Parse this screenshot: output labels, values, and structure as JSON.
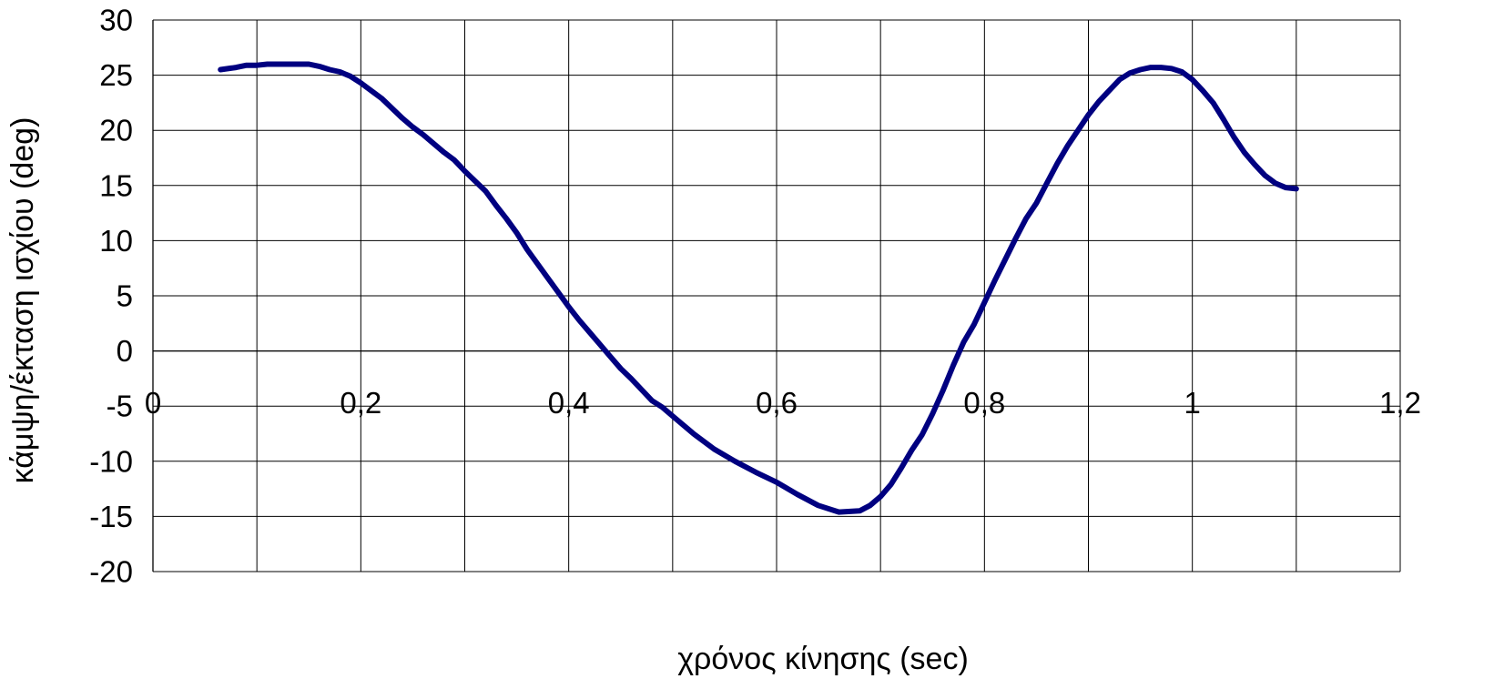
{
  "chart_data": {
    "type": "line",
    "title": "",
    "xlabel": "χρόνος κίνησης (sec)",
    "ylabel": "κάμψη/έκταση ισχίου (deg)",
    "xlim": [
      0,
      1.2
    ],
    "ylim": [
      -20,
      30
    ],
    "x_ticks": [
      0,
      0.2,
      0.4,
      0.6,
      0.8,
      1,
      1.2
    ],
    "x_tick_labels": [
      "0",
      "0,2",
      "0,4",
      "0,6",
      "0,8",
      "1",
      "1,2"
    ],
    "x_grid_step": 0.1,
    "y_ticks": [
      -20,
      -15,
      -10,
      -5,
      0,
      5,
      10,
      15,
      20,
      25,
      30
    ],
    "y_tick_labels": [
      "-20",
      "-15",
      "-10",
      "-5",
      "0",
      "5",
      "10",
      "15",
      "20",
      "25",
      "30"
    ],
    "grid": true,
    "legend": "none",
    "colors": {
      "series": "#000080",
      "grid": "#000000",
      "text": "#000000"
    },
    "series": [
      {
        "points": [
          [
            0.065,
            25.5
          ],
          [
            0.08,
            25.7
          ],
          [
            0.09,
            25.9
          ],
          [
            0.1,
            25.9
          ],
          [
            0.11,
            26.0
          ],
          [
            0.13,
            26.0
          ],
          [
            0.15,
            26.0
          ],
          [
            0.16,
            25.8
          ],
          [
            0.17,
            25.5
          ],
          [
            0.18,
            25.3
          ],
          [
            0.19,
            24.9
          ],
          [
            0.2,
            24.3
          ],
          [
            0.22,
            22.9
          ],
          [
            0.24,
            21.1
          ],
          [
            0.25,
            20.3
          ],
          [
            0.26,
            19.6
          ],
          [
            0.28,
            18.0
          ],
          [
            0.29,
            17.3
          ],
          [
            0.3,
            16.3
          ],
          [
            0.31,
            15.4
          ],
          [
            0.32,
            14.5
          ],
          [
            0.33,
            13.2
          ],
          [
            0.34,
            12.0
          ],
          [
            0.35,
            10.7
          ],
          [
            0.36,
            9.2
          ],
          [
            0.37,
            7.9
          ],
          [
            0.38,
            6.6
          ],
          [
            0.39,
            5.3
          ],
          [
            0.4,
            4.0
          ],
          [
            0.41,
            2.8
          ],
          [
            0.42,
            1.7
          ],
          [
            0.43,
            0.6
          ],
          [
            0.44,
            -0.5
          ],
          [
            0.45,
            -1.6
          ],
          [
            0.46,
            -2.5
          ],
          [
            0.47,
            -3.5
          ],
          [
            0.48,
            -4.5
          ],
          [
            0.49,
            -5.1
          ],
          [
            0.5,
            -5.9
          ],
          [
            0.52,
            -7.5
          ],
          [
            0.54,
            -8.9
          ],
          [
            0.56,
            -10.0
          ],
          [
            0.58,
            -11.0
          ],
          [
            0.6,
            -11.9
          ],
          [
            0.62,
            -13.0
          ],
          [
            0.64,
            -14.0
          ],
          [
            0.66,
            -14.6
          ],
          [
            0.68,
            -14.5
          ],
          [
            0.69,
            -14.0
          ],
          [
            0.7,
            -13.2
          ],
          [
            0.71,
            -12.1
          ],
          [
            0.72,
            -10.6
          ],
          [
            0.73,
            -9.0
          ],
          [
            0.74,
            -7.6
          ],
          [
            0.75,
            -5.7
          ],
          [
            0.76,
            -3.6
          ],
          [
            0.77,
            -1.3
          ],
          [
            0.78,
            0.8
          ],
          [
            0.79,
            2.4
          ],
          [
            0.8,
            4.4
          ],
          [
            0.81,
            6.4
          ],
          [
            0.82,
            8.3
          ],
          [
            0.83,
            10.2
          ],
          [
            0.84,
            12.0
          ],
          [
            0.85,
            13.4
          ],
          [
            0.86,
            15.2
          ],
          [
            0.87,
            17.0
          ],
          [
            0.88,
            18.6
          ],
          [
            0.89,
            20.0
          ],
          [
            0.9,
            21.4
          ],
          [
            0.91,
            22.6
          ],
          [
            0.92,
            23.6
          ],
          [
            0.93,
            24.6
          ],
          [
            0.94,
            25.2
          ],
          [
            0.95,
            25.5
          ],
          [
            0.96,
            25.7
          ],
          [
            0.97,
            25.7
          ],
          [
            0.98,
            25.6
          ],
          [
            0.99,
            25.3
          ],
          [
            1.0,
            24.6
          ],
          [
            1.01,
            23.6
          ],
          [
            1.02,
            22.5
          ],
          [
            1.03,
            21.0
          ],
          [
            1.04,
            19.4
          ],
          [
            1.05,
            18.0
          ],
          [
            1.06,
            16.9
          ],
          [
            1.07,
            15.9
          ],
          [
            1.08,
            15.2
          ],
          [
            1.09,
            14.8
          ],
          [
            1.1,
            14.7
          ]
        ]
      }
    ]
  }
}
